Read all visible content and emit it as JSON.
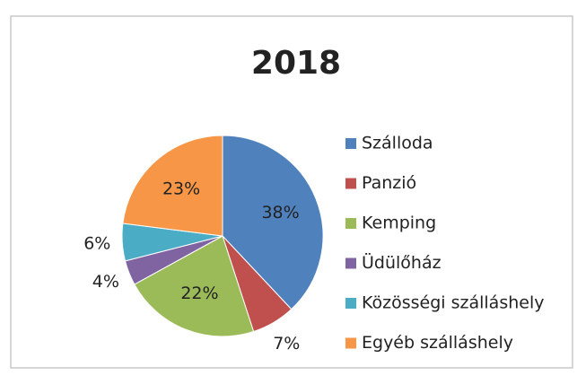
{
  "chart_data": {
    "type": "pie",
    "title": "2018",
    "categories": [
      "Szálloda",
      "Panzió",
      "Kemping",
      "Üdülőház",
      "Közösségi szálláshely",
      "Egyéb szálláshely"
    ],
    "values": [
      38,
      7,
      22,
      4,
      6,
      23
    ],
    "value_labels": [
      "38%",
      "7%",
      "22%",
      "4%",
      "6%",
      "23%"
    ],
    "colors": [
      "#4f81bd",
      "#c0504d",
      "#9bbb59",
      "#8064a2",
      "#4bacc6",
      "#f79646"
    ],
    "legend": "right"
  }
}
